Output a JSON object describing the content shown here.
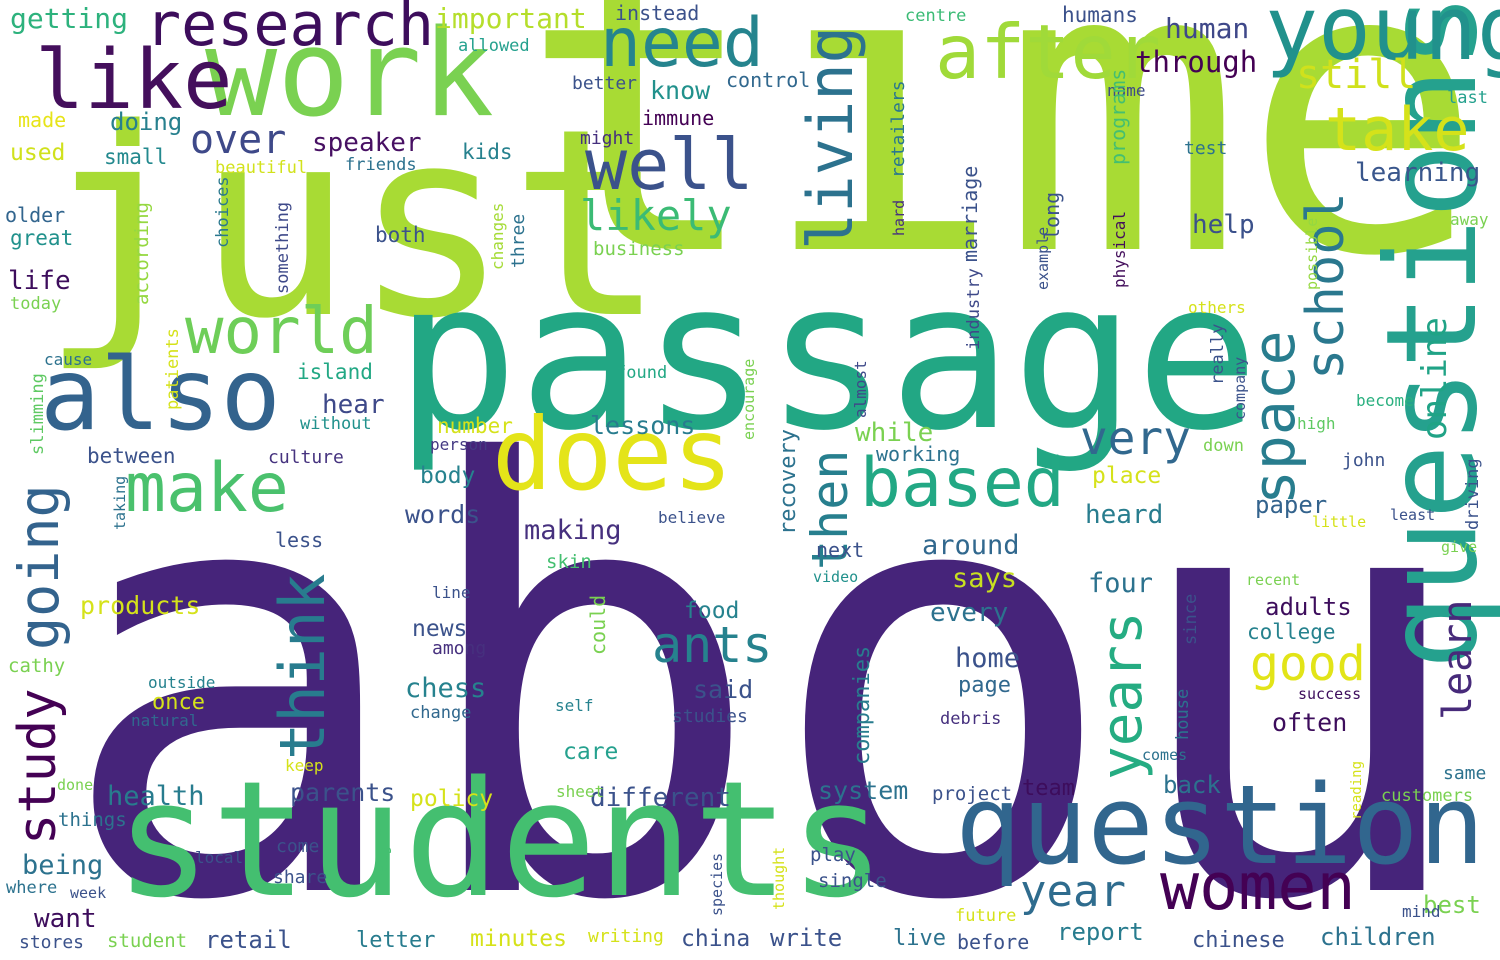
{
  "words": [
    {
      "text": "about",
      "color": "#46247a"
    },
    {
      "text": "time",
      "color": "#a8db34"
    },
    {
      "text": "just",
      "color": "#a8db34"
    },
    {
      "text": "passage",
      "color": "#22a784"
    },
    {
      "text": "students",
      "color": "#44bf70"
    },
    {
      "text": "questions",
      "color": "#25a18e"
    },
    {
      "text": "question",
      "color": "#31668e"
    },
    {
      "text": "work",
      "color": "#7ad151"
    },
    {
      "text": "does",
      "color": "#e4e419"
    },
    {
      "text": "also",
      "color": "#33638d"
    },
    {
      "text": "young",
      "color": "#21918c"
    },
    {
      "text": "like",
      "color": "#440f5c"
    },
    {
      "text": "after",
      "color": "#a0da39"
    },
    {
      "text": "need",
      "color": "#25848e"
    },
    {
      "text": "research",
      "color": "#3d0d5c"
    },
    {
      "text": "well",
      "color": "#3b528b"
    },
    {
      "text": "living",
      "color": "#2c728e"
    },
    {
      "text": "make",
      "color": "#4ac16d"
    },
    {
      "text": "based",
      "color": "#22a884"
    },
    {
      "text": "women",
      "color": "#440154"
    },
    {
      "text": "take",
      "color": "#d5e21a"
    },
    {
      "text": "world",
      "color": "#6ece58"
    },
    {
      "text": "going",
      "color": "#33638d"
    },
    {
      "text": "think",
      "color": "#287c8e"
    },
    {
      "text": "years",
      "color": "#25ac82"
    },
    {
      "text": "space",
      "color": "#287d8e"
    },
    {
      "text": "school",
      "color": "#2a788e"
    },
    {
      "text": "ants",
      "color": "#26828e"
    },
    {
      "text": "very",
      "color": "#31688e"
    },
    {
      "text": "then",
      "color": "#277f8e"
    },
    {
      "text": "study",
      "color": "#440154"
    },
    {
      "text": "good",
      "color": "#e2e418"
    },
    {
      "text": "year",
      "color": "#2f6c8e"
    },
    {
      "text": "learn",
      "color": "#472a7a"
    },
    {
      "text": "online",
      "color": "#20a386"
    },
    {
      "text": "likely",
      "color": "#3bbb75"
    },
    {
      "text": "over",
      "color": "#3e4989"
    },
    {
      "text": "still",
      "color": "#d0e11c"
    },
    {
      "text": "important",
      "color": "#b5de2b"
    },
    {
      "text": "getting",
      "color": "#2db27d"
    },
    {
      "text": "instead",
      "color": "#3b518b"
    },
    {
      "text": "centre",
      "color": "#3bbb75"
    },
    {
      "text": "humans",
      "color": "#3b518b"
    },
    {
      "text": "allowed",
      "color": "#25a18e"
    },
    {
      "text": "through",
      "color": "#440154"
    },
    {
      "text": "human",
      "color": "#3f4889"
    },
    {
      "text": "know",
      "color": "#21918c"
    },
    {
      "text": "control",
      "color": "#31688e"
    },
    {
      "text": "better",
      "color": "#3b528b"
    },
    {
      "text": "immune",
      "color": "#440154"
    },
    {
      "text": "name",
      "color": "#3e4a89"
    },
    {
      "text": "last",
      "color": "#25a18e"
    },
    {
      "text": "made",
      "color": "#e7e419"
    },
    {
      "text": "doing",
      "color": "#27808e"
    },
    {
      "text": "used",
      "color": "#d0e11c"
    },
    {
      "text": "small",
      "color": "#23898e"
    },
    {
      "text": "speaker",
      "color": "#471063"
    },
    {
      "text": "might",
      "color": "#46307e"
    },
    {
      "text": "test",
      "color": "#2c728e"
    },
    {
      "text": "beautiful",
      "color": "#d2e21b"
    },
    {
      "text": "friends",
      "color": "#2c718e"
    },
    {
      "text": "kids",
      "color": "#26818e"
    },
    {
      "text": "programs",
      "color": "#44bf70"
    },
    {
      "text": "retailers",
      "color": "#2a788e"
    },
    {
      "text": "learning",
      "color": "#39568c"
    },
    {
      "text": "older",
      "color": "#32658e"
    },
    {
      "text": "great",
      "color": "#21918c"
    },
    {
      "text": "choices",
      "color": "#2a788e"
    },
    {
      "text": "something",
      "color": "#3e4989"
    },
    {
      "text": "changes",
      "color": "#a5db36"
    },
    {
      "text": "three",
      "color": "#2c728e"
    },
    {
      "text": "business",
      "color": "#7ad151"
    },
    {
      "text": "both",
      "color": "#3b528b"
    },
    {
      "text": "marriage",
      "color": "#3b528b"
    },
    {
      "text": "long",
      "color": "#3b528b"
    },
    {
      "text": "hard",
      "color": "#46307e"
    },
    {
      "text": "physical",
      "color": "#440f5c"
    },
    {
      "text": "example",
      "color": "#3b528b"
    },
    {
      "text": "possible",
      "color": "#95d840"
    },
    {
      "text": "help",
      "color": "#3b518b"
    },
    {
      "text": "away",
      "color": "#7ad151"
    },
    {
      "text": "life",
      "color": "#3d0d5c"
    },
    {
      "text": "according",
      "color": "#95d840"
    },
    {
      "text": "today",
      "color": "#7ad151"
    },
    {
      "text": "industry",
      "color": "#3e4989"
    },
    {
      "text": "others",
      "color": "#d5e21a"
    },
    {
      "text": "patients",
      "color": "#d5e21a"
    },
    {
      "text": "cause",
      "color": "#2c728e"
    },
    {
      "text": "island",
      "color": "#22a884"
    },
    {
      "text": "almost",
      "color": "#3e4989"
    },
    {
      "text": "hear",
      "color": "#3e4989"
    },
    {
      "text": "found",
      "color": "#22a884"
    },
    {
      "text": "encourage",
      "color": "#7ad151"
    },
    {
      "text": "really",
      "color": "#3b528b"
    },
    {
      "text": "company",
      "color": "#3b528b"
    },
    {
      "text": "become",
      "color": "#2ab07f"
    },
    {
      "text": "slimming",
      "color": "#5ec962"
    },
    {
      "text": "without",
      "color": "#21918c"
    },
    {
      "text": "number",
      "color": "#d5e21a"
    },
    {
      "text": "lessons",
      "color": "#287c8e"
    },
    {
      "text": "while",
      "color": "#7ad151"
    },
    {
      "text": "person",
      "color": "#443983"
    },
    {
      "text": "high",
      "color": "#5ec962"
    },
    {
      "text": "between",
      "color": "#3b528b"
    },
    {
      "text": "culture",
      "color": "#46337f"
    },
    {
      "text": "working",
      "color": "#2c728e"
    },
    {
      "text": "down",
      "color": "#7ad151"
    },
    {
      "text": "john",
      "color": "#3b528b"
    },
    {
      "text": "body",
      "color": "#26828e"
    },
    {
      "text": "place",
      "color": "#d5e21a"
    },
    {
      "text": "taking",
      "color": "#2c728e"
    },
    {
      "text": "words",
      "color": "#3b528b"
    },
    {
      "text": "heard",
      "color": "#287d8e"
    },
    {
      "text": "paper",
      "color": "#33638d"
    },
    {
      "text": "driving",
      "color": "#3b528b"
    },
    {
      "text": "believe",
      "color": "#3b528b"
    },
    {
      "text": "little",
      "color": "#d5e21a"
    },
    {
      "text": "least",
      "color": "#3b528b"
    },
    {
      "text": "less",
      "color": "#3b528b"
    },
    {
      "text": "making",
      "color": "#46307e"
    },
    {
      "text": "recovery",
      "color": "#2c728e"
    },
    {
      "text": "around",
      "color": "#31688e"
    },
    {
      "text": "give",
      "color": "#7ad151"
    },
    {
      "text": "skin",
      "color": "#44bf70"
    },
    {
      "text": "next",
      "color": "#3b528b"
    },
    {
      "text": "says",
      "color": "#c8e020"
    },
    {
      "text": "video",
      "color": "#21918c"
    },
    {
      "text": "recent",
      "color": "#7ad151"
    },
    {
      "text": "line",
      "color": "#3b528b"
    },
    {
      "text": "cathy",
      "color": "#7ad151"
    },
    {
      "text": "products",
      "color": "#d5e21a"
    },
    {
      "text": "food",
      "color": "#26828e"
    },
    {
      "text": "four",
      "color": "#2c728e"
    },
    {
      "text": "since",
      "color": "#3b528b"
    },
    {
      "text": "every",
      "color": "#2c728e"
    },
    {
      "text": "adults",
      "color": "#3d0d5c"
    },
    {
      "text": "college",
      "color": "#26828e"
    },
    {
      "text": "could",
      "color": "#7ad151"
    },
    {
      "text": "companies",
      "color": "#287c8e"
    },
    {
      "text": "news",
      "color": "#3b528b"
    },
    {
      "text": "among",
      "color": "#46307e"
    },
    {
      "text": "home",
      "color": "#3b528b"
    },
    {
      "text": "outside",
      "color": "#26828e"
    },
    {
      "text": "page",
      "color": "#31688e"
    },
    {
      "text": "success",
      "color": "#3d0d5c"
    },
    {
      "text": "once",
      "color": "#d5e21a"
    },
    {
      "text": "chess",
      "color": "#26828e"
    },
    {
      "text": "said",
      "color": "#3b528b"
    },
    {
      "text": "natural",
      "color": "#31688e"
    },
    {
      "text": "self",
      "color": "#26828e"
    },
    {
      "text": "change",
      "color": "#31688e"
    },
    {
      "text": "studies",
      "color": "#3b528b"
    },
    {
      "text": "debris",
      "color": "#46307e"
    },
    {
      "text": "often",
      "color": "#3d0d5c"
    },
    {
      "text": "house",
      "color": "#2c728e"
    },
    {
      "text": "care",
      "color": "#25a18e"
    },
    {
      "text": "comes",
      "color": "#2c728e"
    },
    {
      "text": "keep",
      "color": "#d5e21a"
    },
    {
      "text": "same",
      "color": "#2c728e"
    },
    {
      "text": "done",
      "color": "#7ad151"
    },
    {
      "text": "health",
      "color": "#287c8e"
    },
    {
      "text": "reading",
      "color": "#d5e21a"
    },
    {
      "text": "parents",
      "color": "#3b528b"
    },
    {
      "text": "policy",
      "color": "#d5e21a"
    },
    {
      "text": "system",
      "color": "#2c728e"
    },
    {
      "text": "project",
      "color": "#3b528b"
    },
    {
      "text": "team",
      "color": "#3d0d5c"
    },
    {
      "text": "back",
      "color": "#2c728e"
    },
    {
      "text": "different",
      "color": "#3b528b"
    },
    {
      "text": "sheet",
      "color": "#7ad151"
    },
    {
      "text": "customers",
      "color": "#7ad151"
    },
    {
      "text": "things",
      "color": "#2c728e"
    },
    {
      "text": "height",
      "color": "#44bf70"
    },
    {
      "text": "thought",
      "color": "#d5e21a"
    },
    {
      "text": "being",
      "color": "#2c728e"
    },
    {
      "text": "local",
      "color": "#3b528b"
    },
    {
      "text": "come",
      "color": "#3b528b"
    },
    {
      "text": "species",
      "color": "#3b528b"
    },
    {
      "text": "play",
      "color": "#3b528b"
    },
    {
      "text": "share",
      "color": "#3b528b"
    },
    {
      "text": "single",
      "color": "#3b528b"
    },
    {
      "text": "where",
      "color": "#2c728e"
    },
    {
      "text": "week",
      "color": "#3b528b"
    },
    {
      "text": "want",
      "color": "#3d0d5c"
    },
    {
      "text": "best",
      "color": "#7ad151"
    },
    {
      "text": "future",
      "color": "#d5e21a"
    },
    {
      "text": "mind",
      "color": "#3b528b"
    },
    {
      "text": "stores",
      "color": "#3b528b"
    },
    {
      "text": "student",
      "color": "#7ad151"
    },
    {
      "text": "retail",
      "color": "#3b528b"
    },
    {
      "text": "letter",
      "color": "#287c8e"
    },
    {
      "text": "minutes",
      "color": "#d5e21a"
    },
    {
      "text": "writing",
      "color": "#d5e21a"
    },
    {
      "text": "china",
      "color": "#3b528b"
    },
    {
      "text": "write",
      "color": "#3b528b"
    },
    {
      "text": "live",
      "color": "#2c728e"
    },
    {
      "text": "before",
      "color": "#3b528b"
    },
    {
      "text": "report",
      "color": "#287c8e"
    },
    {
      "text": "chinese",
      "color": "#3b528b"
    },
    {
      "text": "children",
      "color": "#2c728e"
    }
  ]
}
